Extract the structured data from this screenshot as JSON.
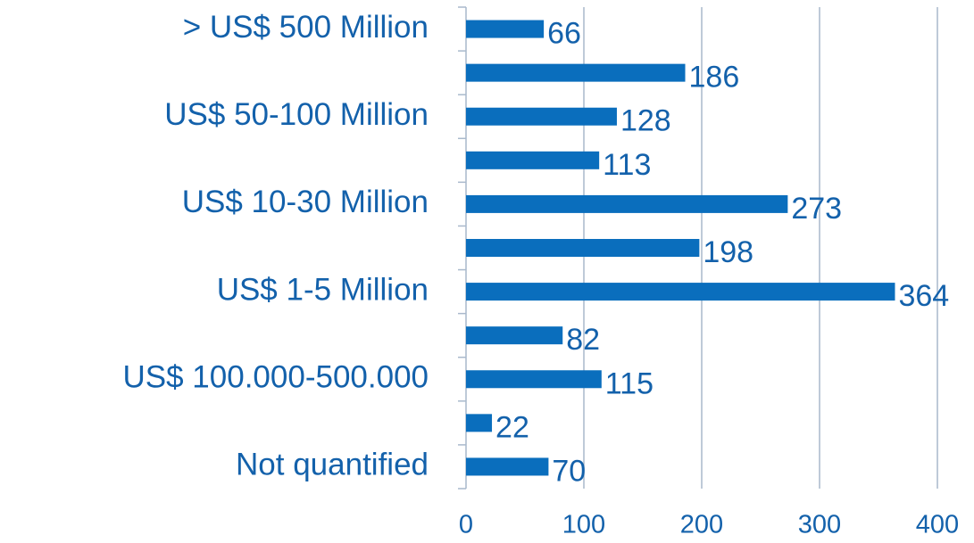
{
  "chart_data": {
    "type": "bar",
    "orientation": "horizontal",
    "categories": [
      "> US$ 500 Million",
      null,
      "US$ 50-100 Million",
      null,
      "US$ 10-30 Million",
      null,
      "US$ 1-5 Million",
      null,
      "US$ 100.000-500.000",
      null,
      "Not quantified"
    ],
    "values": [
      66,
      186,
      128,
      113,
      273,
      198,
      364,
      82,
      115,
      22,
      70
    ],
    "color": "#0a6ebd",
    "xlim": [
      0,
      400
    ],
    "xticks": [
      0,
      100,
      200,
      300,
      400
    ],
    "grid": true
  }
}
